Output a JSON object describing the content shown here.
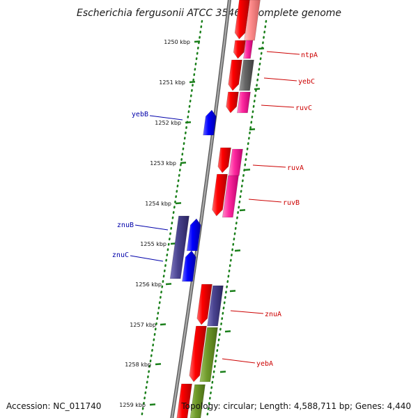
{
  "title": "Escherichia fergusonii ATCC 35469, complete genome",
  "footer": {
    "accession": "Accession: NC_011740",
    "topology": "Topology: circular; Length: 4,588,711 bp; Genes: 4,440"
  },
  "colors": {
    "forward_label": "#cc0000",
    "reverse_label": "#0000aa",
    "tick": "#1a7f1a",
    "backbone": "#888888"
  },
  "ticks": [
    {
      "label": "1250 kbp"
    },
    {
      "label": "1251 kbp"
    },
    {
      "label": "1252 kbp"
    },
    {
      "label": "1253 kbp"
    },
    {
      "label": "1254 kbp"
    },
    {
      "label": "1255 kbp"
    },
    {
      "label": "1256 kbp"
    },
    {
      "label": "1257 kbp"
    },
    {
      "label": "1258 kbp"
    },
    {
      "label": "1259 kbp"
    }
  ],
  "genes": [
    {
      "name": "ntpA",
      "strand": "forward",
      "labeled": true
    },
    {
      "name": "yebC",
      "strand": "forward",
      "labeled": true
    },
    {
      "name": "ruvC",
      "strand": "forward",
      "labeled": true
    },
    {
      "name": "yebB",
      "strand": "reverse",
      "labeled": true
    },
    {
      "name": "ruvA",
      "strand": "forward",
      "labeled": true
    },
    {
      "name": "ruvB",
      "strand": "forward",
      "labeled": true
    },
    {
      "name": "znuB",
      "strand": "reverse",
      "labeled": true
    },
    {
      "name": "znuC",
      "strand": "reverse",
      "labeled": true
    },
    {
      "name": "znuA",
      "strand": "forward",
      "labeled": true
    },
    {
      "name": "yebA",
      "strand": "forward",
      "labeled": true
    }
  ]
}
